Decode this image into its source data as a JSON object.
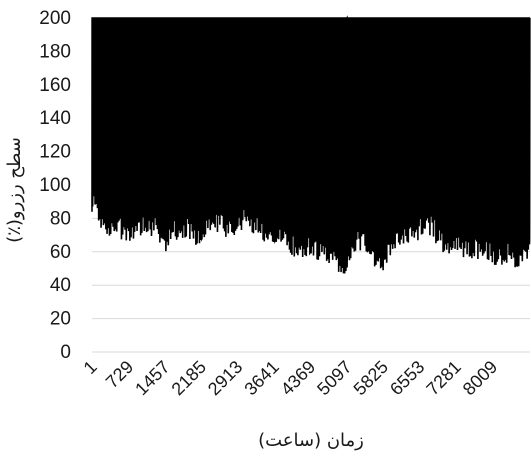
{
  "chart_data": {
    "type": "line",
    "title": "",
    "xlabel": "زمان (ساعت)",
    "ylabel": "سطح رزرو(٪)",
    "ylim": [
      0,
      200
    ],
    "xlim": [
      1,
      8760
    ],
    "grid": "horizontal",
    "legend": "none",
    "line_color": "#000000",
    "grid_color": "#d9d9d9",
    "y_ticks": [
      "0",
      "20",
      "40",
      "60",
      "80",
      "100",
      "120",
      "140",
      "160",
      "180",
      "200"
    ],
    "x_ticks": [
      "1",
      "729",
      "1457",
      "2185",
      "2913",
      "3641",
      "4369",
      "5097",
      "5825",
      "6553",
      "7281",
      "8009"
    ],
    "series": [
      {
        "daily_min_envelope": [
          [
            1,
            84
          ],
          [
            120,
            72
          ],
          [
            300,
            65
          ],
          [
            500,
            70
          ],
          [
            700,
            64
          ],
          [
            850,
            68
          ],
          [
            1000,
            70
          ],
          [
            1150,
            67
          ],
          [
            1300,
            69
          ],
          [
            1450,
            58
          ],
          [
            1600,
            66
          ],
          [
            1750,
            64
          ],
          [
            1900,
            67
          ],
          [
            2050,
            63
          ],
          [
            2200,
            65
          ],
          [
            2350,
            68
          ],
          [
            2500,
            72
          ],
          [
            2650,
            67
          ],
          [
            2800,
            64
          ],
          [
            2950,
            71
          ],
          [
            3100,
            74
          ],
          [
            3250,
            69
          ],
          [
            3400,
            65
          ],
          [
            3550,
            68
          ],
          [
            3700,
            63
          ],
          [
            3850,
            60
          ],
          [
            4000,
            58
          ],
          [
            4150,
            55
          ],
          [
            4300,
            57
          ],
          [
            4450,
            54
          ],
          [
            4600,
            56
          ],
          [
            4750,
            53
          ],
          [
            4900,
            48
          ],
          [
            5000,
            41
          ],
          [
            5150,
            55
          ],
          [
            5300,
            62
          ],
          [
            5450,
            58
          ],
          [
            5600,
            52
          ],
          [
            5750,
            46
          ],
          [
            5800,
            43
          ],
          [
            5950,
            55
          ],
          [
            6100,
            60
          ],
          [
            6250,
            65
          ],
          [
            6400,
            62
          ],
          [
            6550,
            68
          ],
          [
            6700,
            72
          ],
          [
            6850,
            66
          ],
          [
            7000,
            60
          ],
          [
            7150,
            58
          ],
          [
            7300,
            55
          ],
          [
            7450,
            57
          ],
          [
            7600,
            53
          ],
          [
            7750,
            56
          ],
          [
            7900,
            54
          ],
          [
            8050,
            52
          ],
          [
            8200,
            50
          ],
          [
            8350,
            52
          ],
          [
            8500,
            49
          ],
          [
            8650,
            53
          ],
          [
            8760,
            55
          ]
        ],
        "daily_max": 200
      }
    ]
  }
}
